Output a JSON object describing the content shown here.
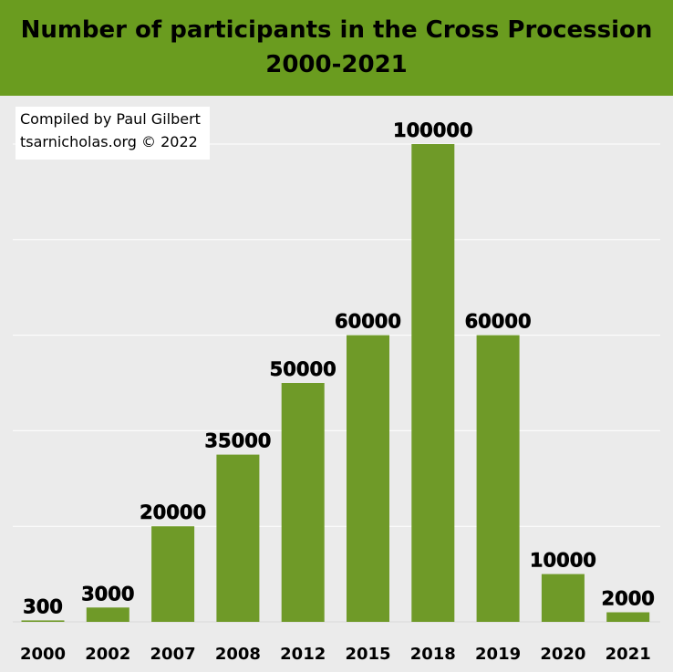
{
  "header": {
    "title_line1": "Number of participants in the Cross Procession",
    "title_line2": "2000-2021"
  },
  "credit": {
    "line1": "Compiled by Paul Gilbert",
    "line2": "tsarnicholas.org © 2022"
  },
  "colors": {
    "header_bg": "#6a9c1f",
    "bar": "#6f9a28",
    "plot_bg": "#ebebeb",
    "grid": "#ffffff"
  },
  "chart_data": {
    "type": "bar",
    "title": "Number of participants in the Cross Procession 2000-2021",
    "categories": [
      "2000",
      "2002",
      "2007",
      "2008",
      "2012",
      "2015",
      "2018",
      "2019",
      "2020",
      "2021"
    ],
    "values": [
      300,
      3000,
      20000,
      35000,
      50000,
      60000,
      100000,
      60000,
      10000,
      2000
    ],
    "data_labels": [
      "300",
      "3000",
      "20000",
      "35000",
      "50000",
      "60000",
      "100000",
      "60000",
      "10000",
      "2000"
    ],
    "ylim": [
      0,
      100000
    ],
    "grid": true,
    "xlabel": "",
    "ylabel": ""
  }
}
